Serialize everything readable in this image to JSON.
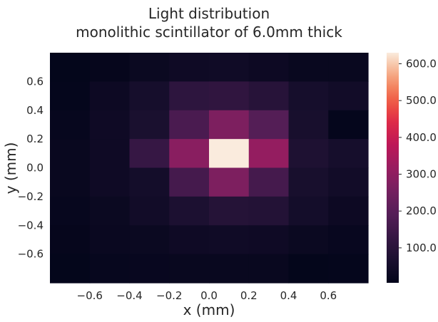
{
  "chart_data": {
    "type": "heatmap",
    "title_lines": [
      "Light distribution",
      "monolithic scintillator of 6.0mm thick"
    ],
    "xlabel": "x (mm)",
    "ylabel": "y (mm)",
    "xlim": [
      -0.8,
      0.8
    ],
    "ylim": [
      -0.8,
      0.8
    ],
    "bin_edges": [
      -0.8,
      -0.6,
      -0.4,
      -0.2,
      0.0,
      0.2,
      0.4,
      0.6,
      0.8
    ],
    "xticks": [
      -0.6,
      -0.4,
      -0.2,
      0.0,
      0.2,
      0.4,
      0.6
    ],
    "yticks": [
      -0.6,
      -0.4,
      -0.2,
      0.0,
      0.2,
      0.4,
      0.6
    ],
    "tick_labels": [
      "−0.6",
      "−0.4",
      "−0.2",
      "0.0",
      "0.2",
      "0.4",
      "0.6"
    ],
    "colorbar": {
      "min": 5,
      "max": 630,
      "ticks": [
        100,
        200,
        300,
        400,
        500,
        600
      ],
      "tick_labels": [
        "100.0",
        "200.0",
        "300.0",
        "400.0",
        "500.0",
        "600.0"
      ]
    },
    "colormap": "rocket",
    "grid": false,
    "values_rows_top_to_bottom": [
      [
        8,
        12,
        25,
        35,
        40,
        30,
        20,
        20
      ],
      [
        10,
        30,
        55,
        110,
        115,
        95,
        55,
        45
      ],
      [
        15,
        35,
        65,
        170,
        270,
        190,
        60,
        10
      ],
      [
        20,
        35,
        130,
        290,
        630,
        310,
        75,
        55
      ],
      [
        20,
        35,
        50,
        160,
        270,
        160,
        60,
        45
      ],
      [
        15,
        25,
        45,
        70,
        90,
        85,
        50,
        30
      ],
      [
        12,
        22,
        25,
        35,
        40,
        35,
        25,
        18
      ],
      [
        8,
        15,
        18,
        20,
        20,
        20,
        8,
        10
      ]
    ]
  }
}
